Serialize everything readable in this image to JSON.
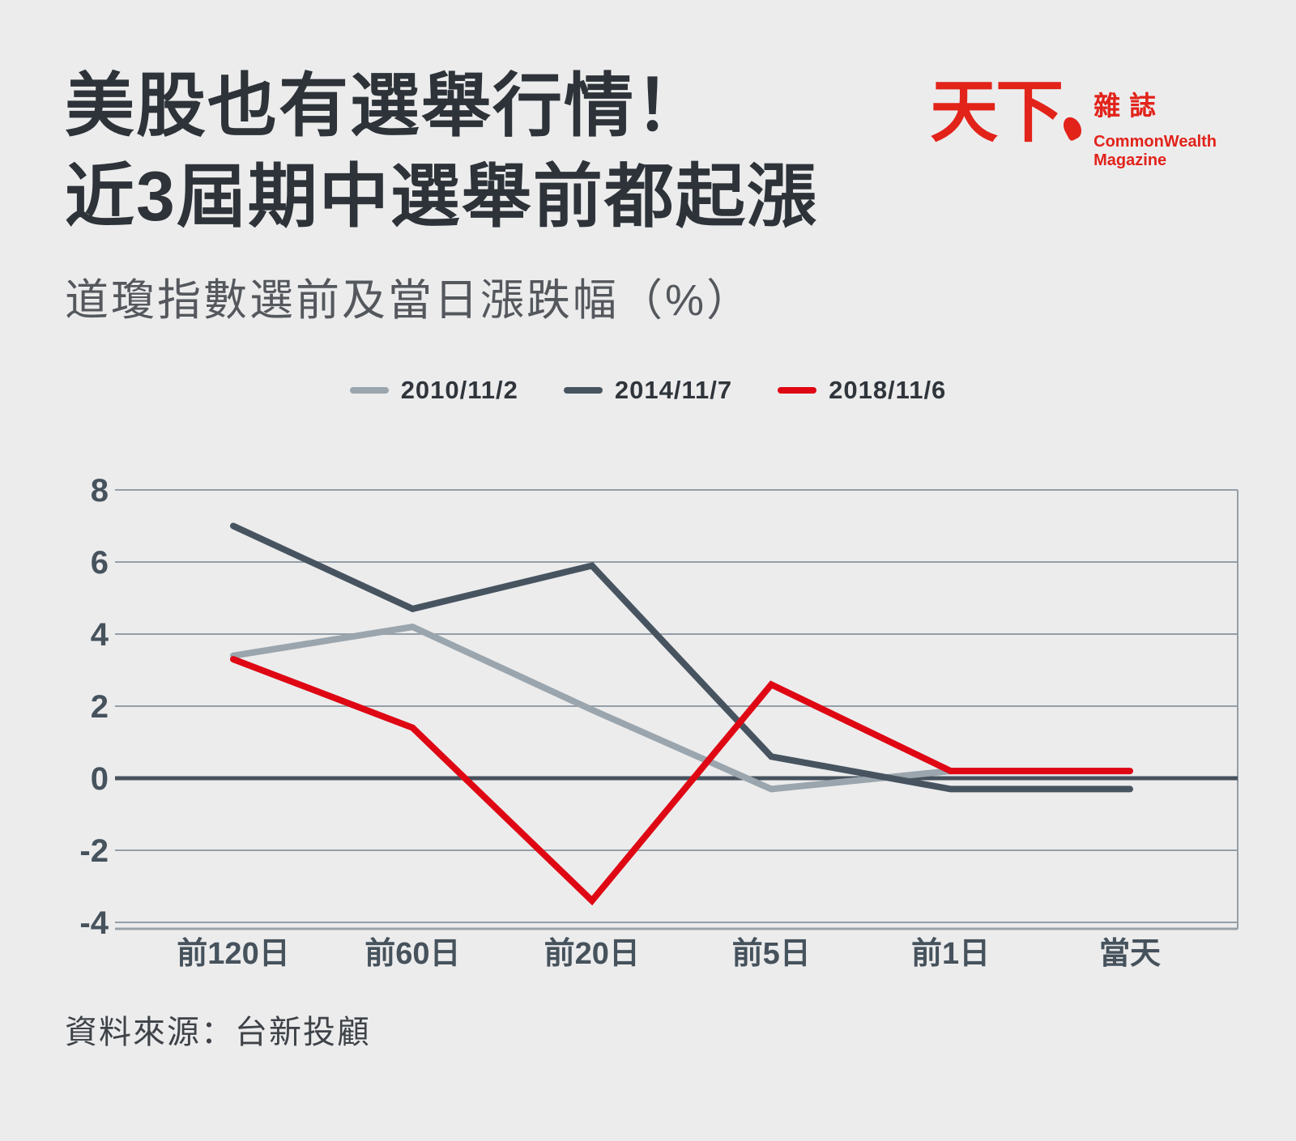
{
  "page": {
    "background": "#ececed"
  },
  "header": {
    "title_line1": "美股也有選舉行情！",
    "title_line2": "近3屆期中選舉前都起漲",
    "subtitle": "道瓊指數選前及當日漲跌幅（%）"
  },
  "logo": {
    "brand_zh": "天下",
    "brand_suffix_zh": "雜誌",
    "brand_en_1": "CommonWealth",
    "brand_en_2": "Magazine",
    "color": "#e2231a"
  },
  "source": "資料來源：台新投顧",
  "chart_data": {
    "type": "line",
    "title": "道瓊指數選前及當日漲跌幅（%）",
    "categories": [
      "前120日",
      "前60日",
      "前20日",
      "前5日",
      "前1日",
      "當天"
    ],
    "series": [
      {
        "name": "2010/11/2",
        "color": "#9aa5ad",
        "values": [
          3.4,
          4.2,
          1.9,
          -0.3,
          0.2,
          0.2
        ]
      },
      {
        "name": "2014/11/7",
        "color": "#475460",
        "values": [
          7.0,
          4.7,
          5.9,
          0.6,
          -0.3,
          -0.3
        ]
      },
      {
        "name": "2018/11/6",
        "color": "#de0713",
        "values": [
          3.3,
          1.4,
          -3.4,
          2.6,
          0.2,
          0.2
        ]
      }
    ],
    "ylim": [
      -4,
      8
    ],
    "yticks": [
      8,
      6,
      4,
      2,
      0,
      -2,
      -4
    ],
    "grid": true,
    "legend_position": "top-center",
    "colors": {
      "grid": "#949ea7",
      "zero_line": "#46525d",
      "baseline": "#9aa2a9",
      "axis_text": "#46525c"
    }
  }
}
